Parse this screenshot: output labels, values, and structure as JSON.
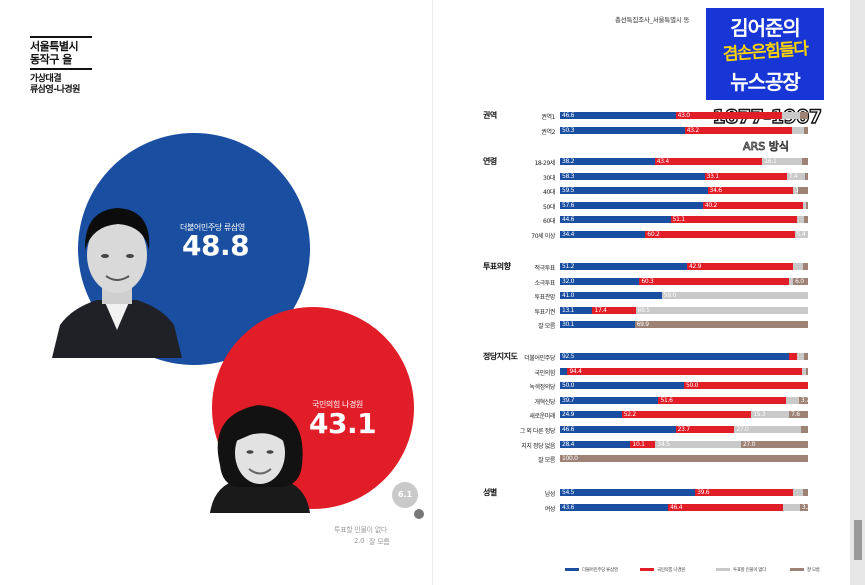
{
  "header": {
    "district_line1": "서울특별시",
    "district_line2": "동작구 을",
    "matchup_line1": "가상대결",
    "matchup_line2": "류삼영-나경원"
  },
  "candidates": [
    {
      "label": "더불어민주당 류삼영",
      "value": "48.8",
      "color": "#1a4ea0"
    },
    {
      "label": "국민의힘 나경원",
      "value": "43.1",
      "color": "#e11d28"
    }
  ],
  "others": {
    "value": "6.1",
    "none_label": "투표할 인물이 없다",
    "dontknow_value": "2.0",
    "dontknow_label": "잘 모름"
  },
  "survey": {
    "source_text": "총선특집조사_서울특별시 동",
    "badge_line1": "김어준의",
    "badge_line2": "겸손은힘들다",
    "badge_line3": "뉴스공장",
    "sample_range": "1877-1907",
    "method": "ARS 방식"
  },
  "colors": {
    "blue": "#1a4ea0",
    "red": "#e11d28",
    "grey": "#c9c9c9",
    "brown": "#9e8275"
  },
  "chart_data": {
    "type": "bar",
    "stacked": true,
    "orientation": "horizontal",
    "xlim": [
      0,
      100
    ],
    "series": [
      {
        "name": "더불어민주당 류삼영",
        "color": "#1a4ea0"
      },
      {
        "name": "국민의힘 나경원",
        "color": "#e11d28"
      },
      {
        "name": "투표할 인물이 없다",
        "color": "#c9c9c9"
      },
      {
        "name": "잘 모름",
        "color": "#9e8275"
      }
    ],
    "groups": [
      {
        "name": "권역",
        "rows": [
          {
            "label": "권역1",
            "values": [
              46.6,
              43.0,
              7.0,
              3.4
            ]
          },
          {
            "label": "권역2",
            "values": [
              50.3,
              43.2,
              5.0,
              1.5
            ]
          }
        ]
      },
      {
        "name": "연령",
        "rows": [
          {
            "label": "18-29세",
            "values": [
              38.2,
              43.4,
              16.1,
              2.3
            ]
          },
          {
            "label": "30대",
            "values": [
              58.3,
              33.1,
              7.4,
              1.2
            ]
          },
          {
            "label": "40대",
            "values": [
              59.5,
              34.6,
              1.9,
              4.0
            ]
          },
          {
            "label": "50대",
            "values": [
              57.6,
              40.2,
              1.2,
              1.0
            ]
          },
          {
            "label": "60대",
            "values": [
              44.6,
              51.1,
              2.8,
              1.5
            ]
          },
          {
            "label": "70세 이상",
            "values": [
              34.4,
              60.2,
              5.4,
              0
            ]
          }
        ]
      },
      {
        "name": "투표의향",
        "rows": [
          {
            "label": "적극투표",
            "values": [
              51.2,
              42.9,
              4.0,
              1.9
            ]
          },
          {
            "label": "소극투표",
            "values": [
              32.0,
              60.3,
              1.7,
              6.0
            ]
          },
          {
            "label": "투표관망",
            "values": [
              41.0,
              0,
              59.0,
              0
            ]
          },
          {
            "label": "투표기권",
            "values": [
              13.1,
              17.4,
              69.5,
              0
            ]
          },
          {
            "label": "잘 모름",
            "values": [
              30.1,
              0,
              0,
              69.9
            ]
          }
        ]
      },
      {
        "name": "정당지지도",
        "rows": [
          {
            "label": "더불어민주당",
            "values": [
              92.5,
              3.0,
              3.0,
              1.5
            ]
          },
          {
            "label": "국민의힘",
            "values": [
              3.0,
              94.4,
              1.6,
              1.0
            ]
          },
          {
            "label": "녹색정의당",
            "values": [
              50.0,
              50.0,
              0,
              0
            ]
          },
          {
            "label": "개혁신당",
            "values": [
              39.7,
              51.6,
              5.0,
              3.7
            ]
          },
          {
            "label": "새로운미래",
            "values": [
              24.9,
              52.2,
              15.3,
              7.6
            ]
          },
          {
            "label": "그 외 다른 정당",
            "values": [
              46.6,
              23.7,
              27.0,
              2.7
            ]
          },
          {
            "label": "지지 정당 없음",
            "values": [
              28.4,
              10.1,
              34.5,
              27.0
            ]
          },
          {
            "label": "잘 모름",
            "values": [
              0,
              0,
              0,
              100.0
            ]
          }
        ]
      },
      {
        "name": "성별",
        "rows": [
          {
            "label": "남성",
            "values": [
              54.5,
              39.6,
              4.0,
              1.9
            ]
          },
          {
            "label": "여성",
            "values": [
              43.6,
              46.4,
              6.7,
              3.3
            ]
          }
        ]
      }
    ],
    "labels_shown": [
      [
        [
          "46.6",
          "43.0",
          "",
          ""
        ],
        [
          "50.3",
          "43.2",
          "",
          ""
        ]
      ],
      [
        [
          "38.2",
          "43.4",
          "16.1",
          ""
        ],
        [
          "58.3",
          "33.1",
          "7.4",
          ""
        ],
        [
          "59.5",
          "34.6",
          "1.9",
          ""
        ],
        [
          "57.6",
          "40.2",
          "",
          ""
        ],
        [
          "44.6",
          "51.1",
          "",
          ""
        ],
        [
          "34.4",
          "60.2",
          "5.4",
          ""
        ]
      ],
      [
        [
          "51.2",
          "42.9",
          "",
          ""
        ],
        [
          "32.0",
          "60.3",
          "",
          "6.0"
        ],
        [
          "41.0",
          "",
          "59.0",
          ""
        ],
        [
          "13.1",
          "17.4",
          "69.5",
          ""
        ],
        [
          "30.1",
          "",
          "",
          "69.9"
        ]
      ],
      [
        [
          "92.5",
          "",
          "",
          ""
        ],
        [
          "",
          "94.4",
          "",
          ""
        ],
        [
          "50.0",
          "50.0",
          "",
          ""
        ],
        [
          "39.7",
          "51.6",
          "",
          "3.7"
        ],
        [
          "24.9",
          "52.2",
          "15.3",
          "7.6"
        ],
        [
          "46.6",
          "23.7",
          "27.0",
          ""
        ],
        [
          "28.4",
          "10.1",
          "34.5",
          "27.0"
        ],
        [
          "",
          "",
          "",
          "100.0"
        ]
      ],
      [
        [
          "54.5",
          "39.6",
          "",
          ""
        ],
        [
          "43.6",
          "46.4",
          "",
          "3.3"
        ]
      ]
    ]
  },
  "legend": [
    {
      "label": "더불어민주당 류삼영",
      "color": "#1a4ea0"
    },
    {
      "label": "국민의힘 나경원",
      "color": "#e11d28"
    },
    {
      "label": "투표할 인물이 없다",
      "color": "#c9c9c9"
    },
    {
      "label": "잘 모름",
      "color": "#9e8275"
    }
  ]
}
